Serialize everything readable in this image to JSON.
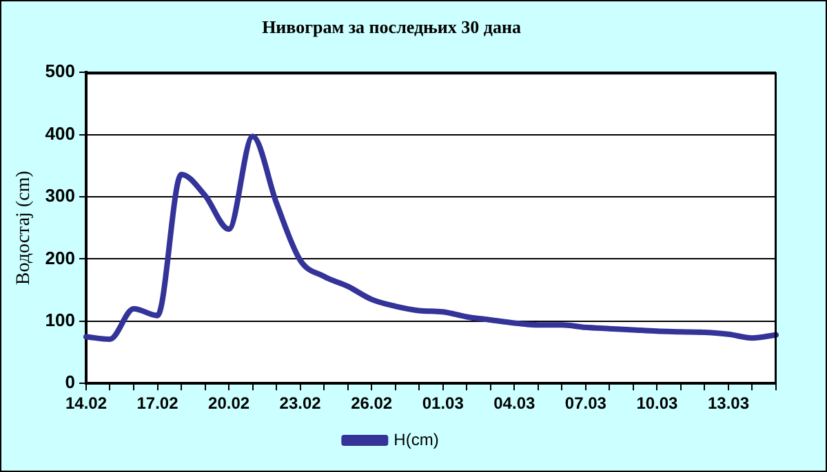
{
  "chart_data": {
    "type": "line",
    "title": "Нивограм за последњих 30 дана",
    "ylabel": "Водостај (cm)",
    "categories": [
      "14.02",
      null,
      null,
      "17.02",
      null,
      null,
      "20.02",
      null,
      null,
      "23.02",
      null,
      null,
      "26.02",
      null,
      null,
      "01.03",
      null,
      null,
      "04.03",
      null,
      null,
      "07.03",
      null,
      null,
      "10.03",
      null,
      null,
      "13.03",
      null,
      null
    ],
    "series": [
      {
        "name": "H(cm)",
        "color": "#333399",
        "values": [
          75,
          71,
          120,
          109,
          336,
          302,
          248,
          397,
          290,
          198,
          172,
          156,
          135,
          124,
          117,
          115,
          107,
          102,
          97,
          94,
          94,
          90,
          88,
          86,
          84,
          83,
          82,
          79,
          73,
          78
        ]
      }
    ],
    "ylim": [
      0,
      500
    ],
    "yticks": [
      0,
      100,
      200,
      300,
      400,
      500
    ],
    "grid": "y",
    "legend": "bottom",
    "marker": "none",
    "line_style": "solid"
  }
}
